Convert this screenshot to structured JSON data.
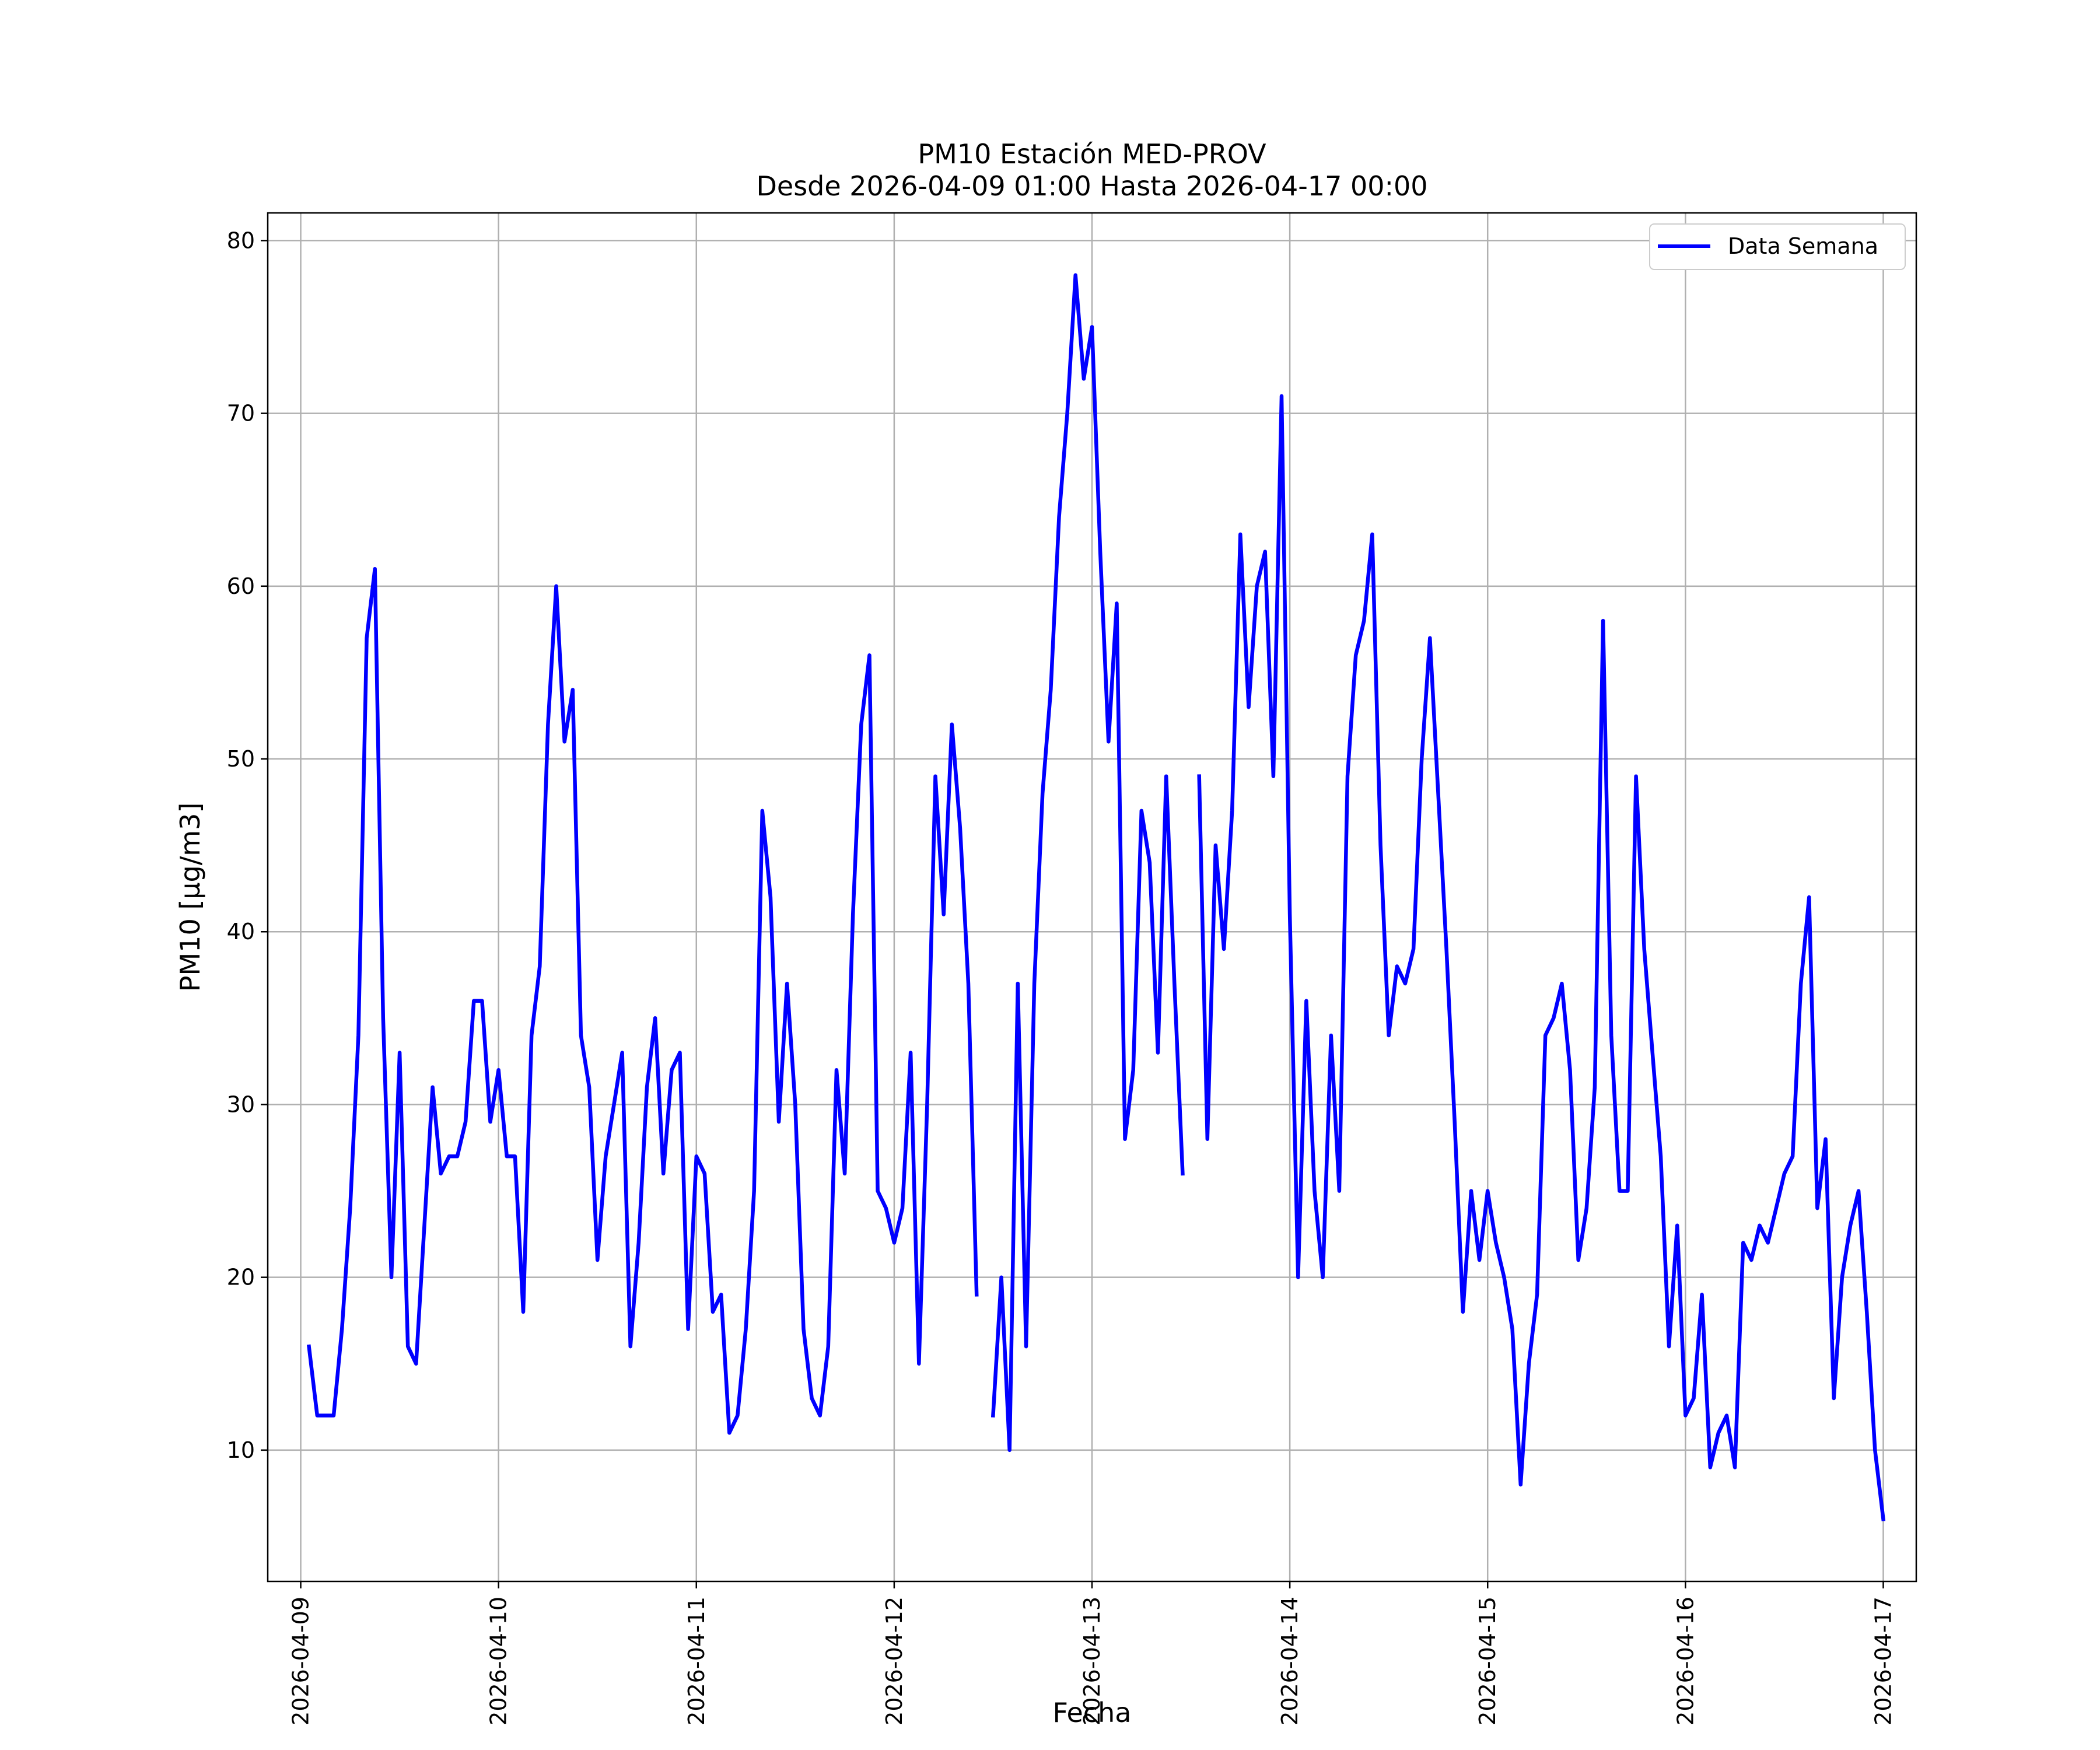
{
  "chart_data": {
    "type": "line",
    "title": "PM10 Estación MED-PROV",
    "subtitle": "Desde 2026-04-09 01:00 Hasta 2026-04-17 00:00",
    "xlabel": "Fecha",
    "ylabel": "PM10 [μg/m3]",
    "x_start": "2026-04-09 01:00",
    "x_interval_hours": 1,
    "xlim": [
      "2026-04-08 20:00",
      "2026-04-17 04:00"
    ],
    "ylim": [
      2.4,
      81.6
    ],
    "x_ticks": [
      "2026-04-09",
      "2026-04-10",
      "2026-04-11",
      "2026-04-12",
      "2026-04-13",
      "2026-04-14",
      "2026-04-15",
      "2026-04-16",
      "2026-04-17"
    ],
    "y_ticks": [
      10,
      20,
      30,
      40,
      50,
      60,
      70,
      80
    ],
    "grid": true,
    "legend_position": "top-right",
    "series": [
      {
        "name": "Data Semana",
        "color": "#0000ff",
        "values": [
          16,
          12,
          12,
          12,
          17,
          24,
          34,
          57,
          61,
          35,
          20,
          33,
          16,
          15,
          23,
          31,
          26,
          27,
          27,
          29,
          36,
          36,
          29,
          32,
          27,
          27,
          18,
          34,
          38,
          52,
          60,
          51,
          54,
          34,
          31,
          21,
          27,
          30,
          33,
          16,
          22,
          31,
          35,
          26,
          32,
          33,
          17,
          27,
          26,
          18,
          19,
          11,
          12,
          17,
          25,
          47,
          42,
          29,
          37,
          30,
          17,
          13,
          12,
          16,
          32,
          26,
          41,
          52,
          56,
          25,
          24,
          22,
          24,
          33,
          15,
          30,
          49,
          41,
          52,
          46,
          37,
          19,
          null,
          12,
          20,
          10,
          37,
          16,
          37,
          48,
          54,
          64,
          70,
          78,
          72,
          75,
          62,
          51,
          59,
          28,
          32,
          47,
          44,
          33,
          49,
          37,
          26,
          null,
          49,
          28,
          45,
          39,
          47,
          63,
          53,
          60,
          62,
          49,
          71,
          41,
          20,
          36,
          25,
          20,
          34,
          25,
          49,
          56,
          58,
          63,
          45,
          34,
          38,
          37,
          39,
          50,
          57,
          48,
          39,
          29,
          18,
          25,
          21,
          25,
          22,
          20,
          17,
          8,
          15,
          19,
          34,
          35,
          37,
          32,
          21,
          24,
          31,
          58,
          34,
          25,
          25,
          49,
          39,
          33,
          27,
          16,
          23,
          12,
          13,
          19,
          9,
          11,
          12,
          9,
          22,
          21,
          23,
          22,
          24,
          26,
          27,
          37,
          42,
          24,
          28,
          13,
          20,
          23,
          25,
          18,
          10,
          6
        ]
      }
    ]
  }
}
